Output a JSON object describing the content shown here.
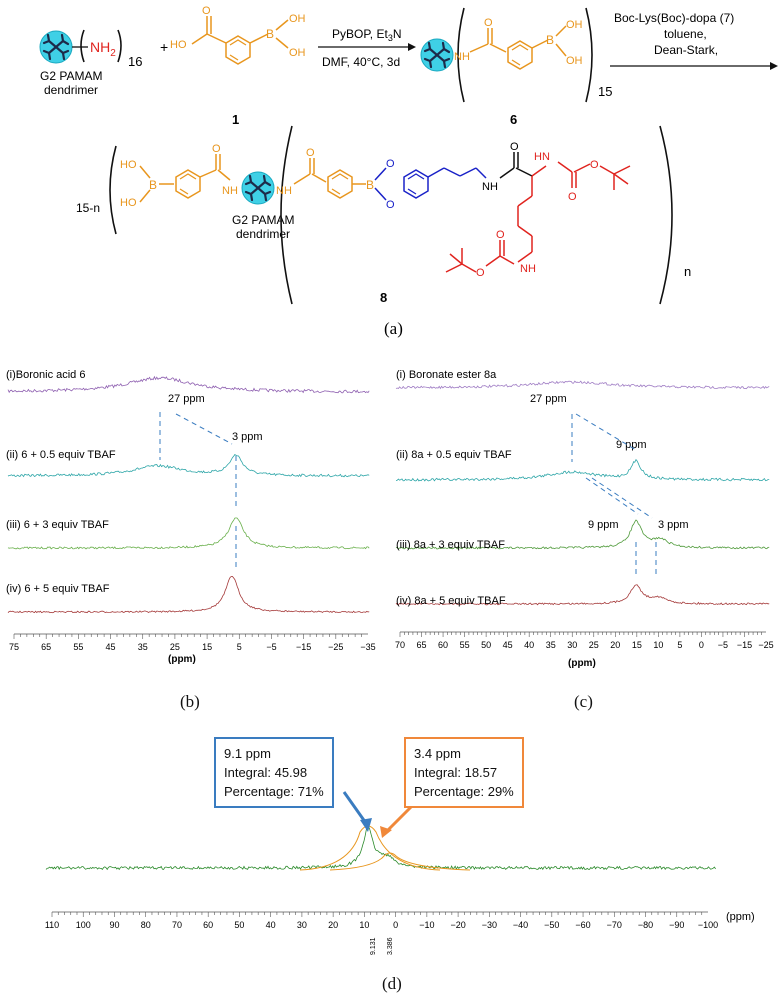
{
  "scheme": {
    "dendrimer_label_line1": "G2 PAMAM",
    "dendrimer_label_line2": "dendrimer",
    "nh2": "NH",
    "nh2_sub": "2",
    "subscript_16": "16",
    "plus": "+",
    "compound1_label": "1",
    "compound6_label": "6",
    "compound8_label": "8",
    "reagents1_line1": "PyBOP, Et",
    "reagents1_sub": "3",
    "reagents1_line1_end": "N",
    "reagents1_line2": "DMF, 40°C, 3d",
    "reagents2_line1": "Boc-Lys(Boc)-dopa (7)",
    "reagents2_line2": "toluene,",
    "reagents2_line3": "Dean-Stark,",
    "subscript_15": "15",
    "prefix_15n": "15-n",
    "subscript_n": "n",
    "oh": "OH",
    "ho": "HO",
    "b": "B",
    "o": "O",
    "nh": "NH",
    "hn": "HN",
    "h": "H",
    "n": "N",
    "panel_a": "(a)"
  },
  "panel_b": {
    "label": "(b)",
    "xlabel": "(ppm)",
    "ticks": [
      "75",
      "65",
      "55",
      "45",
      "35",
      "25",
      "15",
      "5",
      "−5",
      "−15",
      "−25",
      "−35"
    ],
    "traces": [
      {
        "label": "(i)Boronic acid 6",
        "color": "#8e5fb0"
      },
      {
        "label": "(ii) 6 + 0.5 equiv TBAF",
        "color": "#2ea6a8"
      },
      {
        "label": "(iii) 6 + 3 equiv TBAF",
        "color": "#6ab04c"
      },
      {
        "label": "(iv) 6 + 5 equiv TBAF",
        "color": "#a53a3a"
      }
    ],
    "annotations": [
      "27 ppm",
      "3 ppm"
    ]
  },
  "panel_c": {
    "label": "(c)",
    "xlabel": "(ppm)",
    "ticks": [
      "70",
      "65",
      "60",
      "55",
      "50",
      "45",
      "40",
      "35",
      "30",
      "25",
      "20",
      "15",
      "10",
      "5",
      "0",
      "−5",
      "−15",
      "−25"
    ],
    "traces": [
      {
        "label": "(i) Boronate ester 8a",
        "color": "#9f7cc4"
      },
      {
        "label": "(ii) 8a + 0.5 equiv TBAF",
        "color": "#2ea6a8"
      },
      {
        "label": "(iii) 8a + 3 equiv TBAF",
        "color": "#4f9a3a"
      },
      {
        "label": "(iv) 8a + 5 equiv TBAF",
        "color": "#a53a3a"
      }
    ],
    "annotations": [
      "27 ppm",
      "9 ppm",
      "9 ppm",
      "3 ppm"
    ]
  },
  "panel_d": {
    "label": "(d)",
    "xlabel": "(ppm)",
    "ticks": [
      "110",
      "100",
      "90",
      "80",
      "70",
      "60",
      "50",
      "40",
      "30",
      "20",
      "10",
      "0",
      "−10",
      "−20",
      "−30",
      "−40",
      "−50",
      "−60",
      "−70",
      "−80",
      "−90",
      "−100"
    ],
    "peak_labels": [
      "9.131",
      "3.386"
    ],
    "box_blue": {
      "ppm": "9.1 ppm",
      "integral": "Integral: 45.98",
      "percentage": "Percentage: 71%",
      "color": "#3a7cc0"
    },
    "box_orange": {
      "ppm": "3.4 ppm",
      "integral": "Integral: 18.57",
      "percentage": "Percentage: 29%",
      "color": "#f0883a"
    }
  },
  "colors": {
    "orange": "#e8961e",
    "blue": "#1a22c8",
    "red": "#e0241f",
    "dendrimer": "#3fd0e6"
  }
}
